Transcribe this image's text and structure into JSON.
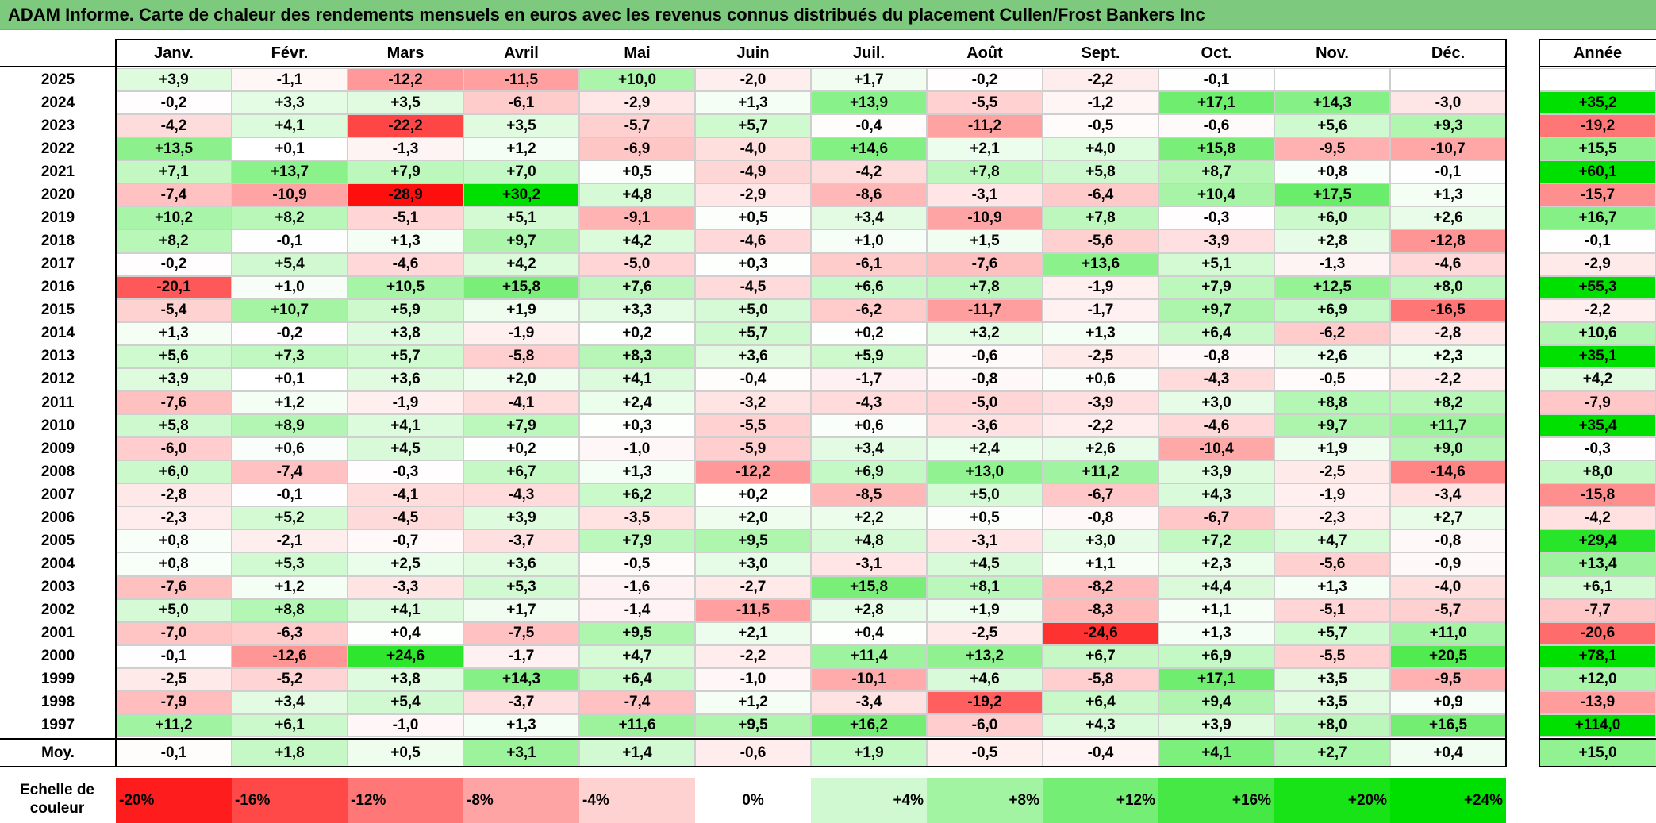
{
  "title": "ADAM Informe. Carte de chaleur des rendements mensuels en euros avec les revenus connus distribués du placement Cullen/Frost Bankers Inc",
  "chart_data": {
    "type": "heatmap",
    "title": "ADAM Informe. Carte de chaleur des rendements mensuels en euros avec les revenus connus distribués du placement Cullen/Frost Bankers Inc",
    "columns": [
      "Janv.",
      "Févr.",
      "Mars",
      "Avril",
      "Mai",
      "Juin",
      "Juil.",
      "Août",
      "Sept.",
      "Oct.",
      "Nov.",
      "Déc."
    ],
    "year_header": "Année",
    "rows": [
      {
        "year": "2025",
        "values": [
          "+3,9",
          "-1,1",
          "-12,2",
          "-11,5",
          "+10,0",
          "-2,0",
          "+1,7",
          "-0,2",
          "-2,2",
          "-0,1",
          "",
          ""
        ],
        "annual": ""
      },
      {
        "year": "2024",
        "values": [
          "-0,2",
          "+3,3",
          "+3,5",
          "-6,1",
          "-2,9",
          "+1,3",
          "+13,9",
          "-5,5",
          "-1,2",
          "+17,1",
          "+14,3",
          "-3,0"
        ],
        "annual": "+35,2"
      },
      {
        "year": "2023",
        "values": [
          "-4,2",
          "+4,1",
          "-22,2",
          "+3,5",
          "-5,7",
          "+5,7",
          "-0,4",
          "-11,2",
          "-0,5",
          "-0,6",
          "+5,6",
          "+9,3"
        ],
        "annual": "-19,2"
      },
      {
        "year": "2022",
        "values": [
          "+13,5",
          "+0,1",
          "-1,3",
          "+1,2",
          "-6,9",
          "-4,0",
          "+14,6",
          "+2,1",
          "+4,0",
          "+15,8",
          "-9,5",
          "-10,7"
        ],
        "annual": "+15,5"
      },
      {
        "year": "2021",
        "values": [
          "+7,1",
          "+13,7",
          "+7,9",
          "+7,0",
          "+0,5",
          "-4,9",
          "-4,2",
          "+7,8",
          "+5,8",
          "+8,7",
          "+0,8",
          "-0,1"
        ],
        "annual": "+60,1"
      },
      {
        "year": "2020",
        "values": [
          "-7,4",
          "-10,9",
          "-28,9",
          "+30,2",
          "+4,8",
          "-2,9",
          "-8,6",
          "-3,1",
          "-6,4",
          "+10,4",
          "+17,5",
          "+1,3"
        ],
        "annual": "-15,7"
      },
      {
        "year": "2019",
        "values": [
          "+10,2",
          "+8,2",
          "-5,1",
          "+5,1",
          "-9,1",
          "+0,5",
          "+3,4",
          "-10,9",
          "+7,8",
          "-0,3",
          "+6,0",
          "+2,6"
        ],
        "annual": "+16,7"
      },
      {
        "year": "2018",
        "values": [
          "+8,2",
          "-0,1",
          "+1,3",
          "+9,7",
          "+4,2",
          "-4,6",
          "+1,0",
          "+1,5",
          "-5,6",
          "-3,9",
          "+2,8",
          "-12,8"
        ],
        "annual": "-0,1"
      },
      {
        "year": "2017",
        "values": [
          "-0,2",
          "+5,4",
          "-4,6",
          "+4,2",
          "-5,0",
          "+0,3",
          "-6,1",
          "-7,6",
          "+13,6",
          "+5,1",
          "-1,3",
          "-4,6"
        ],
        "annual": "-2,9"
      },
      {
        "year": "2016",
        "values": [
          "-20,1",
          "+1,0",
          "+10,5",
          "+15,8",
          "+7,6",
          "-4,5",
          "+6,6",
          "+7,8",
          "-1,9",
          "+7,9",
          "+12,5",
          "+8,0"
        ],
        "annual": "+55,3"
      },
      {
        "year": "2015",
        "values": [
          "-5,4",
          "+10,7",
          "+5,9",
          "+1,9",
          "+3,3",
          "+5,0",
          "-6,2",
          "-11,7",
          "-1,7",
          "+9,7",
          "+6,9",
          "-16,5"
        ],
        "annual": "-2,2"
      },
      {
        "year": "2014",
        "values": [
          "+1,3",
          "-0,2",
          "+3,8",
          "-1,9",
          "+0,2",
          "+5,7",
          "+0,2",
          "+3,2",
          "+1,3",
          "+6,4",
          "-6,2",
          "-2,8"
        ],
        "annual": "+10,6"
      },
      {
        "year": "2013",
        "values": [
          "+5,6",
          "+7,3",
          "+5,7",
          "-5,8",
          "+8,3",
          "+3,6",
          "+5,9",
          "-0,6",
          "-2,5",
          "-0,8",
          "+2,6",
          "+2,3"
        ],
        "annual": "+35,1"
      },
      {
        "year": "2012",
        "values": [
          "+3,9",
          "+0,1",
          "+3,6",
          "+2,0",
          "+4,1",
          "-0,4",
          "-1,7",
          "-0,8",
          "+0,6",
          "-4,3",
          "-0,5",
          "-2,2"
        ],
        "annual": "+4,2"
      },
      {
        "year": "2011",
        "values": [
          "-7,6",
          "+1,2",
          "-1,9",
          "-4,1",
          "+2,4",
          "-3,2",
          "-4,3",
          "-5,0",
          "-3,9",
          "+3,0",
          "+8,8",
          "+8,2"
        ],
        "annual": "-7,9"
      },
      {
        "year": "2010",
        "values": [
          "+5,8",
          "+8,9",
          "+4,1",
          "+7,9",
          "+0,3",
          "-5,5",
          "+0,6",
          "-3,6",
          "-2,2",
          "-4,6",
          "+9,7",
          "+11,7"
        ],
        "annual": "+35,4"
      },
      {
        "year": "2009",
        "values": [
          "-6,0",
          "+0,6",
          "+4,5",
          "+0,2",
          "-1,0",
          "-5,9",
          "+3,4",
          "+2,4",
          "+2,6",
          "-10,4",
          "+1,9",
          "+9,0"
        ],
        "annual": "-0,3"
      },
      {
        "year": "2008",
        "values": [
          "+6,0",
          "-7,4",
          "-0,3",
          "+6,7",
          "+1,3",
          "-12,2",
          "+6,9",
          "+13,0",
          "+11,2",
          "+3,9",
          "-2,5",
          "-14,6"
        ],
        "annual": "+8,0"
      },
      {
        "year": "2007",
        "values": [
          "-2,8",
          "-0,1",
          "-4,1",
          "-4,3",
          "+6,2",
          "+0,2",
          "-8,5",
          "+5,0",
          "-6,7",
          "+4,3",
          "-1,9",
          "-3,4"
        ],
        "annual": "-15,8"
      },
      {
        "year": "2006",
        "values": [
          "-2,3",
          "+5,2",
          "-4,5",
          "+3,9",
          "-3,5",
          "+2,0",
          "+2,2",
          "+0,5",
          "-0,8",
          "-6,7",
          "-2,3",
          "+2,7"
        ],
        "annual": "-4,2"
      },
      {
        "year": "2005",
        "values": [
          "+0,8",
          "-2,1",
          "-0,7",
          "-3,7",
          "+7,9",
          "+9,5",
          "+4,8",
          "-3,1",
          "+3,0",
          "+7,2",
          "+4,7",
          "-0,8"
        ],
        "annual": "+29,4"
      },
      {
        "year": "2004",
        "values": [
          "+0,8",
          "+5,3",
          "+2,5",
          "+3,6",
          "-0,5",
          "+3,0",
          "-3,1",
          "+4,5",
          "+1,1",
          "+2,3",
          "-5,6",
          "-0,9"
        ],
        "annual": "+13,4"
      },
      {
        "year": "2003",
        "values": [
          "-7,6",
          "+1,2",
          "-3,3",
          "+5,3",
          "-1,6",
          "-2,7",
          "+15,8",
          "+8,1",
          "-8,2",
          "+4,4",
          "+1,3",
          "-4,0"
        ],
        "annual": "+6,1"
      },
      {
        "year": "2002",
        "values": [
          "+5,0",
          "+8,8",
          "+4,1",
          "+1,7",
          "-1,4",
          "-11,5",
          "+2,8",
          "+1,9",
          "-8,3",
          "+1,1",
          "-5,1",
          "-5,7"
        ],
        "annual": "-7,7"
      },
      {
        "year": "2001",
        "values": [
          "-7,0",
          "-6,3",
          "+0,4",
          "-7,5",
          "+9,5",
          "+2,1",
          "+0,4",
          "-2,5",
          "-24,6",
          "+1,3",
          "+5,7",
          "+11,0"
        ],
        "annual": "-20,6"
      },
      {
        "year": "2000",
        "values": [
          "-0,1",
          "-12,6",
          "+24,6",
          "-1,7",
          "+4,7",
          "-2,2",
          "+11,4",
          "+13,2",
          "+6,7",
          "+6,9",
          "-5,5",
          "+20,5"
        ],
        "annual": "+78,1"
      },
      {
        "year": "1999",
        "values": [
          "-2,5",
          "-5,2",
          "+3,8",
          "+14,3",
          "+6,4",
          "-1,0",
          "-10,1",
          "+4,6",
          "-5,8",
          "+17,1",
          "+3,5",
          "-9,5"
        ],
        "annual": "+12,0"
      },
      {
        "year": "1998",
        "values": [
          "-7,9",
          "+3,4",
          "+5,4",
          "-3,7",
          "-7,4",
          "+1,2",
          "-3,4",
          "-19,2",
          "+6,4",
          "+9,4",
          "+3,5",
          "+0,9"
        ],
        "annual": "-13,9"
      },
      {
        "year": "1997",
        "values": [
          "+11,2",
          "+6,1",
          "-1,0",
          "+1,3",
          "+11,6",
          "+9,5",
          "+16,2",
          "-6,0",
          "+4,3",
          "+3,9",
          "+8,0",
          "+16,5"
        ],
        "annual": "+114,0"
      }
    ],
    "average_row": {
      "label": "Moy.",
      "values": [
        "-0,1",
        "+1,8",
        "+0,5",
        "+3,1",
        "+1,4",
        "-0,6",
        "+1,9",
        "-0,5",
        "-0,4",
        "+4,1",
        "+2,7",
        "+0,4"
      ],
      "annual": "+15,0"
    },
    "scale": {
      "label": "Echelle de couleur",
      "steps": [
        "-20%",
        "-16%",
        "-12%",
        "-8%",
        "-4%",
        "0%",
        "+4%",
        "+8%",
        "+12%",
        "+16%",
        "+20%",
        "+24%"
      ],
      "values": [
        -20,
        -16,
        -12,
        -8,
        -4,
        0,
        4,
        8,
        12,
        16,
        20,
        24
      ]
    },
    "colors": {
      "negative": "#ff0000",
      "neutral": "#ffffff",
      "positive": "#00e000",
      "title_bar": "#7dc97d"
    }
  }
}
